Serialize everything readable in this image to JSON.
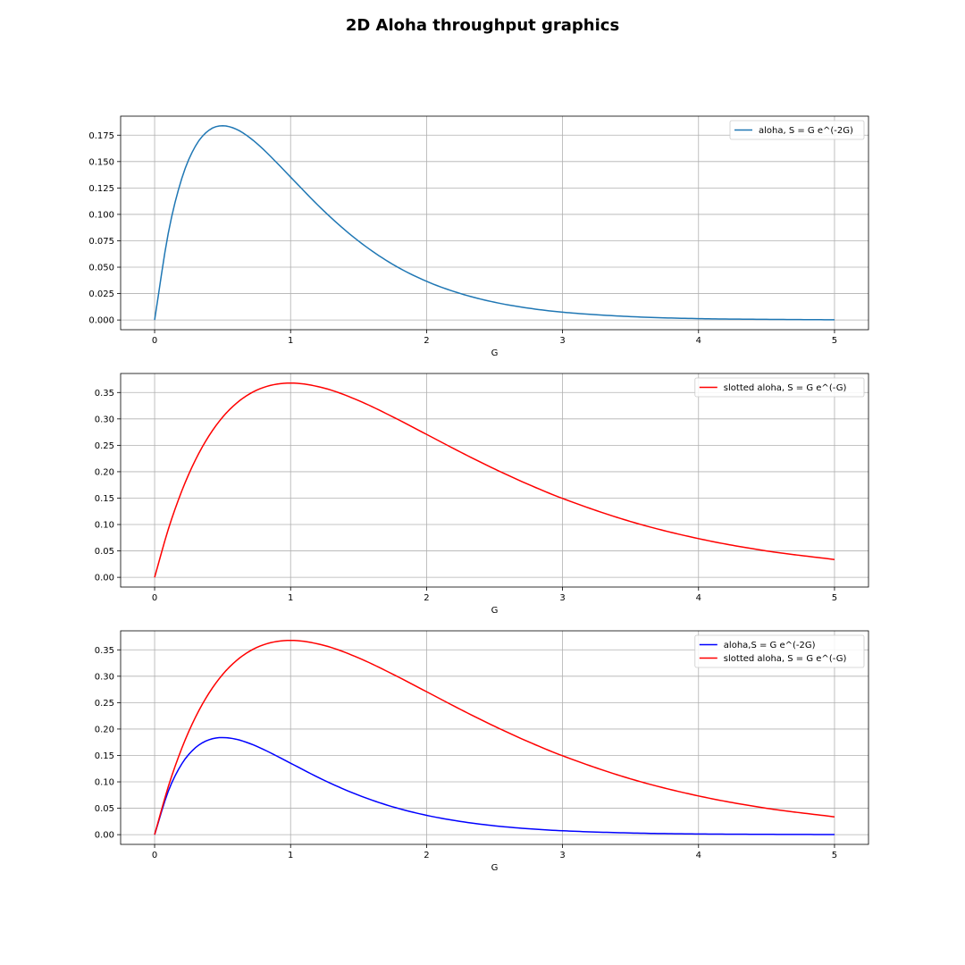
{
  "figure": {
    "title": "2D Aloha throughput graphics"
  },
  "chart_data": [
    {
      "type": "line",
      "xlabel": "G",
      "ylabel": "",
      "xlim": [
        -0.25,
        5.25
      ],
      "ylim": [
        -0.0092,
        0.193
      ],
      "xticks": [
        0,
        1,
        2,
        3,
        4,
        5
      ],
      "xtick_labels": [
        "0",
        "1",
        "2",
        "3",
        "4",
        "5"
      ],
      "yticks": [
        0.0,
        0.025,
        0.05,
        0.075,
        0.1,
        0.125,
        0.15,
        0.175
      ],
      "ytick_labels": [
        "0.000",
        "0.025",
        "0.050",
        "0.075",
        "0.100",
        "0.125",
        "0.150",
        "0.175"
      ],
      "grid": true,
      "legend_position": "top-right",
      "series": [
        {
          "name": "aloha, S = G e^(-2G)",
          "color": "#1f77b4",
          "x": [
            0,
            0.1,
            0.2,
            0.3,
            0.4,
            0.5,
            0.6,
            0.7,
            0.8,
            0.9,
            1.0,
            1.25,
            1.5,
            1.75,
            2.0,
            2.25,
            2.5,
            2.75,
            3.0,
            3.5,
            4.0,
            4.5,
            5.0
          ],
          "y": [
            0,
            0.0819,
            0.1341,
            0.1646,
            0.1797,
            0.1839,
            0.1807,
            0.1726,
            0.1615,
            0.1487,
            0.1353,
            0.1026,
            0.0747,
            0.0528,
            0.0366,
            0.025,
            0.0168,
            0.0112,
            0.0074,
            0.0032,
            0.0013,
            0.0006,
            0.0002
          ]
        }
      ]
    },
    {
      "type": "line",
      "xlabel": "G",
      "ylabel": "",
      "xlim": [
        -0.25,
        5.25
      ],
      "ylim": [
        -0.0184,
        0.386
      ],
      "xticks": [
        0,
        1,
        2,
        3,
        4,
        5
      ],
      "xtick_labels": [
        "0",
        "1",
        "2",
        "3",
        "4",
        "5"
      ],
      "yticks": [
        0.0,
        0.05,
        0.1,
        0.15,
        0.2,
        0.25,
        0.3,
        0.35
      ],
      "ytick_labels": [
        "0.00",
        "0.05",
        "0.10",
        "0.15",
        "0.20",
        "0.25",
        "0.30",
        "0.35"
      ],
      "grid": true,
      "legend_position": "top-right",
      "series": [
        {
          "name": "slotted aloha, S = G e^(-G)",
          "color": "#ff0000",
          "x": [
            0,
            0.1,
            0.2,
            0.3,
            0.4,
            0.5,
            0.6,
            0.7,
            0.8,
            0.9,
            1.0,
            1.25,
            1.5,
            1.75,
            2.0,
            2.25,
            2.5,
            2.75,
            3.0,
            3.5,
            4.0,
            4.5,
            5.0
          ],
          "y": [
            0,
            0.0905,
            0.1637,
            0.2222,
            0.2681,
            0.3033,
            0.3293,
            0.3476,
            0.3595,
            0.3659,
            0.3679,
            0.3581,
            0.3347,
            0.3041,
            0.2707,
            0.2371,
            0.2052,
            0.1758,
            0.1494,
            0.1057,
            0.0733,
            0.05,
            0.0337
          ]
        }
      ]
    },
    {
      "type": "line",
      "xlabel": "G",
      "ylabel": "",
      "xlim": [
        -0.25,
        5.25
      ],
      "ylim": [
        -0.0184,
        0.386
      ],
      "xticks": [
        0,
        1,
        2,
        3,
        4,
        5
      ],
      "xtick_labels": [
        "0",
        "1",
        "2",
        "3",
        "4",
        "5"
      ],
      "yticks": [
        0.0,
        0.05,
        0.1,
        0.15,
        0.2,
        0.25,
        0.3,
        0.35
      ],
      "ytick_labels": [
        "0.00",
        "0.05",
        "0.10",
        "0.15",
        "0.20",
        "0.25",
        "0.30",
        "0.35"
      ],
      "grid": true,
      "legend_position": "top-right",
      "series": [
        {
          "name": "aloha,S = G e^(-2G)",
          "color": "#0000ff",
          "x": [
            0,
            0.1,
            0.2,
            0.3,
            0.4,
            0.5,
            0.6,
            0.7,
            0.8,
            0.9,
            1.0,
            1.25,
            1.5,
            1.75,
            2.0,
            2.25,
            2.5,
            2.75,
            3.0,
            3.5,
            4.0,
            4.5,
            5.0
          ],
          "y": [
            0,
            0.0819,
            0.1341,
            0.1646,
            0.1797,
            0.1839,
            0.1807,
            0.1726,
            0.1615,
            0.1487,
            0.1353,
            0.1026,
            0.0747,
            0.0528,
            0.0366,
            0.025,
            0.0168,
            0.0112,
            0.0074,
            0.0032,
            0.0013,
            0.0006,
            0.0002
          ]
        },
        {
          "name": "slotted aloha, S = G e^(-G)",
          "color": "#ff0000",
          "x": [
            0,
            0.1,
            0.2,
            0.3,
            0.4,
            0.5,
            0.6,
            0.7,
            0.8,
            0.9,
            1.0,
            1.25,
            1.5,
            1.75,
            2.0,
            2.25,
            2.5,
            2.75,
            3.0,
            3.5,
            4.0,
            4.5,
            5.0
          ],
          "y": [
            0,
            0.0905,
            0.1637,
            0.2222,
            0.2681,
            0.3033,
            0.3293,
            0.3476,
            0.3595,
            0.3659,
            0.3679,
            0.3581,
            0.3347,
            0.3041,
            0.2707,
            0.2371,
            0.2052,
            0.1758,
            0.1494,
            0.1057,
            0.0733,
            0.05,
            0.0337
          ]
        }
      ]
    }
  ]
}
